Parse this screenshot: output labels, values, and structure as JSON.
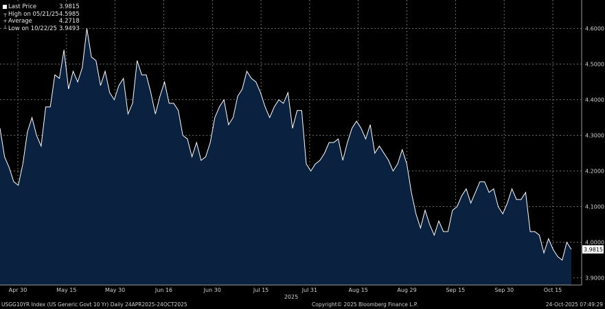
{
  "legend": {
    "last_label": "Last Price",
    "last_value": "3.9815",
    "high_label": "High on 05/21/25",
    "high_value": "4.5985",
    "avg_label": "Average",
    "avg_value": "4.2718",
    "low_label": "Low on 10/22/25",
    "low_value": "3.9493"
  },
  "footer": {
    "left": "USGG10YR Index (US Generic Govt 10 Yr) Daily 24APR2025-24OCT2025",
    "center": "Copyright© 2025 Bloomberg Finance L.P.",
    "right": "24-Oct-2025 07:49:29"
  },
  "colors": {
    "background": "#000000",
    "area_fill": "#0b2140",
    "line": "#ffffff",
    "grid": "#8a8a8a"
  },
  "chart_data": {
    "type": "area",
    "ylim": [
      3.88,
      4.68
    ],
    "y_ticks": [
      "3.9000",
      "4.0000",
      "4.1000",
      "4.2000",
      "4.3000",
      "4.4000",
      "4.5000",
      "4.6000"
    ],
    "x_ticks": [
      "Apr 30",
      "May 15",
      "May 30",
      "Jun 16",
      "Jun 30",
      "Jul 15",
      "Jul 31",
      "Aug 15",
      "Aug 29",
      "Sep 15",
      "Sep 30",
      "Oct 15"
    ],
    "x_year_label": "2025",
    "last_value_label": "3.9815",
    "grid": true,
    "series": [
      {
        "values": [
          4.32,
          4.24,
          4.21,
          4.17,
          4.16,
          4.22,
          4.31,
          4.35,
          4.3,
          4.27,
          4.38,
          4.38,
          4.47,
          4.46,
          4.54,
          4.43,
          4.48,
          4.45,
          4.49,
          4.6,
          4.52,
          4.51,
          4.44,
          4.48,
          4.42,
          4.4,
          4.44,
          4.46,
          4.36,
          4.39,
          4.51,
          4.47,
          4.47,
          4.42,
          4.36,
          4.41,
          4.45,
          4.39,
          4.39,
          4.37,
          4.3,
          4.29,
          4.24,
          4.28,
          4.23,
          4.24,
          4.28,
          4.35,
          4.38,
          4.4,
          4.33,
          4.35,
          4.41,
          4.43,
          4.48,
          4.46,
          4.45,
          4.42,
          4.38,
          4.35,
          4.38,
          4.4,
          4.39,
          4.42,
          4.32,
          4.37,
          4.37,
          4.22,
          4.2,
          4.22,
          4.23,
          4.25,
          4.28,
          4.28,
          4.29,
          4.23,
          4.28,
          4.32,
          4.34,
          4.32,
          4.29,
          4.33,
          4.25,
          4.27,
          4.25,
          4.23,
          4.2,
          4.22,
          4.26,
          4.22,
          4.14,
          4.08,
          4.04,
          4.09,
          4.05,
          4.02,
          4.06,
          4.03,
          4.03,
          4.09,
          4.1,
          4.13,
          4.15,
          4.11,
          4.14,
          4.17,
          4.17,
          4.14,
          4.15,
          4.1,
          4.08,
          4.11,
          4.15,
          4.12,
          4.12,
          4.14,
          4.03,
          4.03,
          4.02,
          3.97,
          4.01,
          3.98,
          3.96,
          3.95,
          4.0,
          3.98
        ]
      }
    ]
  }
}
